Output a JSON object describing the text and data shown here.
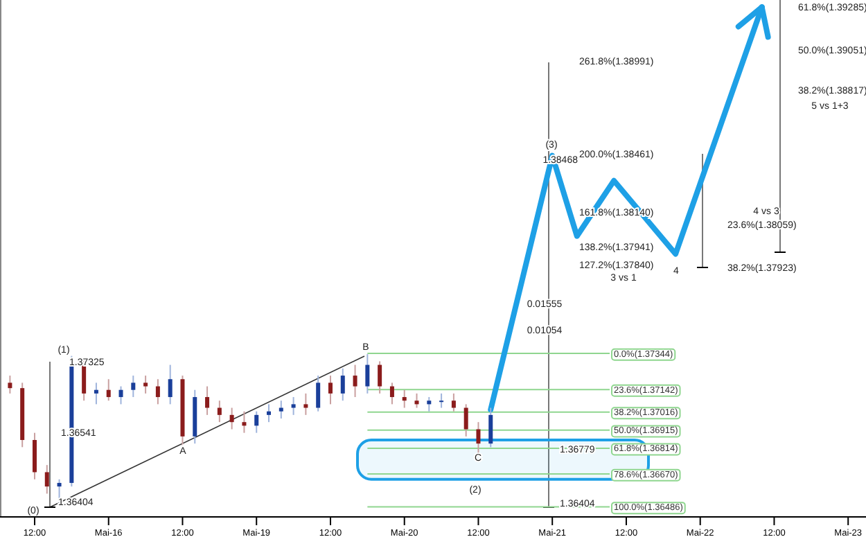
{
  "chart_data": {
    "type": "candlestick",
    "categories": [
      null,
      null,
      "12:00",
      null,
      null,
      null,
      null,
      null,
      "Mai-16",
      null,
      null,
      null,
      null,
      null,
      "12:00",
      null,
      null,
      null,
      null,
      null,
      "Mai-19",
      null,
      null,
      null,
      null,
      null,
      "12:00",
      null,
      null,
      null,
      null,
      null,
      "Mai-20",
      null,
      null,
      null,
      null,
      null,
      "12:00",
      null,
      null,
      null,
      null,
      null,
      "Mai-21",
      null,
      null,
      null,
      null,
      null,
      "12:00",
      null,
      null,
      null,
      null,
      null,
      "Mai-22",
      null,
      null,
      null,
      null,
      null,
      "12:00",
      null,
      null,
      null,
      null,
      null,
      "Mai-23",
      null
    ],
    "ohlc": [
      [
        1.3718,
        1.3722,
        1.3712,
        1.3715
      ],
      [
        1.3715,
        1.3718,
        1.3682,
        1.3686
      ],
      [
        1.3686,
        1.369,
        1.3664,
        1.3668
      ],
      [
        1.3668,
        1.3672,
        1.3656,
        1.366
      ],
      [
        1.366,
        1.3664,
        1.3649,
        1.3662
      ],
      [
        1.3662,
        1.3733,
        1.366,
        1.3728
      ],
      [
        1.3728,
        1.3732,
        1.3708,
        1.3712
      ],
      [
        1.3712,
        1.3718,
        1.3706,
        1.3714
      ],
      [
        1.3714,
        1.372,
        1.3708,
        1.371
      ],
      [
        1.371,
        1.3716,
        1.3706,
        1.3714
      ],
      [
        1.3714,
        1.3722,
        1.371,
        1.3718
      ],
      [
        1.3718,
        1.3722,
        1.3712,
        1.3716
      ],
      [
        1.3716,
        1.372,
        1.3706,
        1.371
      ],
      [
        1.371,
        1.3728,
        1.3706,
        1.372
      ],
      [
        1.372,
        1.3722,
        1.3682,
        1.3688
      ],
      [
        1.3688,
        1.3714,
        1.3684,
        1.371
      ],
      [
        1.371,
        1.3716,
        1.37,
        1.3704
      ],
      [
        1.3704,
        1.3708,
        1.3696,
        1.37
      ],
      [
        1.37,
        1.3704,
        1.3692,
        1.3696
      ],
      [
        1.3696,
        1.3702,
        1.369,
        1.3694
      ],
      [
        1.3694,
        1.3702,
        1.369,
        1.37
      ],
      [
        1.37,
        1.3706,
        1.3696,
        1.3702
      ],
      [
        1.3702,
        1.3708,
        1.3698,
        1.3704
      ],
      [
        1.3704,
        1.371,
        1.37,
        1.3706
      ],
      [
        1.3706,
        1.3712,
        1.37,
        1.3704
      ],
      [
        1.3704,
        1.3722,
        1.3702,
        1.3718
      ],
      [
        1.3718,
        1.3722,
        1.3706,
        1.3712
      ],
      [
        1.3712,
        1.3726,
        1.3708,
        1.3722
      ],
      [
        1.3722,
        1.3728,
        1.371,
        1.3716
      ],
      [
        1.3716,
        1.3734,
        1.3712,
        1.3728
      ],
      [
        1.3728,
        1.373,
        1.3712,
        1.3716
      ],
      [
        1.3716,
        1.3718,
        1.3706,
        1.371
      ],
      [
        1.371,
        1.3714,
        1.3704,
        1.3708
      ],
      [
        1.3708,
        1.3712,
        1.3704,
        1.3706
      ],
      [
        1.3706,
        1.371,
        1.3702,
        1.3708
      ],
      [
        1.3708,
        1.3712,
        1.3704,
        1.3708
      ],
      [
        1.3708,
        1.3712,
        1.3702,
        1.3704
      ],
      [
        1.3704,
        1.3706,
        1.3688,
        1.3692
      ],
      [
        1.3692,
        1.3696,
        1.3678,
        1.3684
      ],
      [
        1.3684,
        1.3704,
        1.3682,
        1.37
      ],
      null,
      null,
      null,
      null,
      null,
      null,
      null,
      null,
      null,
      null,
      null,
      null,
      null,
      null,
      null,
      null,
      null,
      null,
      null,
      null,
      null,
      null,
      null,
      null,
      null,
      null,
      null,
      null,
      null,
      null
    ],
    "series": [
      {
        "type": "line",
        "color": "#1ea0e6",
        "values": [
          null,
          null,
          null,
          null,
          null,
          null,
          null,
          null,
          null,
          null,
          null,
          null,
          null,
          null,
          null,
          null,
          null,
          null,
          null,
          null,
          null,
          null,
          null,
          null,
          null,
          null,
          null,
          null,
          null,
          null,
          null,
          null,
          null,
          null,
          null,
          null,
          null,
          null,
          null,
          1.3703,
          null,
          null,
          null,
          null,
          1.3845,
          null,
          1.38,
          null,
          null,
          1.3831,
          null,
          null,
          null,
          null,
          1.379,
          null,
          null,
          null,
          null,
          null,
          null,
          1.3928,
          null,
          null,
          null,
          null,
          null,
          null,
          null,
          null
        ]
      }
    ],
    "ylim": [
      1.3643,
      1.3932
    ],
    "tick_labels": "x",
    "ref_lines": [
      {
        "axis": "y",
        "value": 1.37344,
        "label": "0.0%(1.37344)",
        "color": "#8fd68f"
      },
      {
        "axis": "y",
        "value": 1.37142,
        "label": "23.6%(1.37142)",
        "color": "#8fd68f"
      },
      {
        "axis": "y",
        "value": 1.37016,
        "label": "38.2%(1.37016)",
        "color": "#8fd68f"
      },
      {
        "axis": "y",
        "value": 1.36915,
        "label": "50.0%(1.36915)",
        "color": "#8fd68f"
      },
      {
        "axis": "y",
        "value": 1.36814,
        "label": "61.8%(1.36814)",
        "color": "#8fd68f"
      },
      {
        "axis": "y",
        "value": 1.3667,
        "label": "78.6%(1.36670)",
        "color": "#8fd68f"
      },
      {
        "axis": "y",
        "value": 1.36486,
        "label": "100.0%(1.36486)",
        "color": "#8fd68f"
      }
    ],
    "bands": [
      {
        "axis": "y",
        "from": 1.3664,
        "to": 1.3686,
        "color": "#1ea0e6"
      }
    ],
    "annotations": [
      "(0)",
      "(1)",
      "1.37325",
      "1.36541",
      "1.36404",
      "A",
      "B",
      "C",
      "(2)",
      "(3)",
      "1.38468",
      "0.01555",
      "0.01054",
      "1.36779",
      "1.36404",
      "261.8%(1.38991)",
      "200.0%(1.38461)",
      "161.8%(1.38140)",
      "138.2%(1.37941)",
      "127.2%(1.37840)",
      "3 vs 1",
      "4",
      "4 vs 3",
      "23.6%(1.38059)",
      "38.2%(1.37923)",
      "61.8%(1.39285)",
      "50.0%(1.39051)",
      "38.2%(1.38817)",
      "5 vs 1+3"
    ]
  }
}
